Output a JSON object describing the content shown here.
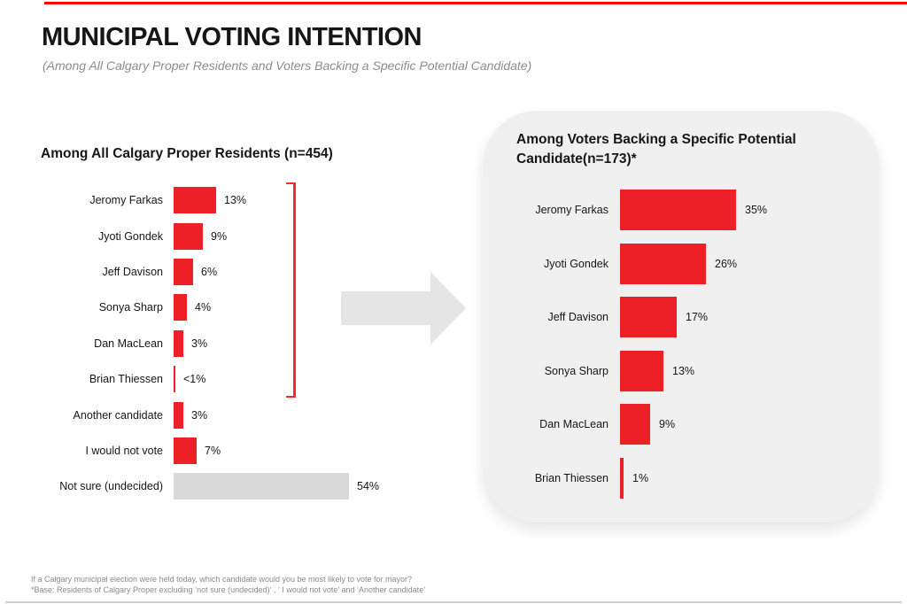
{
  "page": {
    "title": "MUNICIPAL VOTING INTENTION",
    "subtitle": "(Among All Calgary Proper Residents and Voters Backing a Specific Potential Candidate)",
    "footnote_line1": "If a Calgary municipal election were held today, which candidate would you be most likely to vote for mayor?",
    "footnote_line2": "*Base: Residents of Calgary Proper excluding ‘not sure (undecided)’ , ‘ I would not vote’ and ‘Another candidate’"
  },
  "colors": {
    "accent_line": "#FF0000",
    "bar_red": "#ED2027",
    "bar_gray": "#D9D9D9",
    "panel_bg": "#F0F0F0",
    "arrow_gray": "#E5E5E5"
  },
  "chart_data": [
    {
      "type": "bar",
      "orientation": "horizontal",
      "title": "Among All Calgary Proper Residents (n=454)",
      "categories": [
        "Jeromy Farkas",
        "Jyoti Gondek",
        "Jeff Davison",
        "Sonya Sharp",
        "Dan MacLean",
        "Brian Thiessen",
        "Another candidate",
        "I would not vote",
        "Not sure (undecided)"
      ],
      "values": [
        13,
        9,
        6,
        4,
        3,
        0.5,
        3,
        7,
        54
      ],
      "value_labels": [
        "13%",
        "9%",
        "6%",
        "4%",
        "3%",
        "<1%",
        "3%",
        "7%",
        "54%"
      ],
      "bar_variants": [
        "red",
        "red",
        "red",
        "red",
        "red",
        "red",
        "red",
        "red",
        "gray"
      ],
      "xlim": [
        0,
        60
      ],
      "grid": false,
      "annotation_bracket": {
        "from_row": 0,
        "to_row": 5,
        "color": "#F52A2A"
      }
    },
    {
      "type": "bar",
      "orientation": "horizontal",
      "title": "Among  Voters Backing a Specific Potential Candidate(n=173)*",
      "categories": [
        "Jeromy Farkas",
        "Jyoti Gondek",
        "Jeff Davison",
        "Sonya Sharp",
        "Dan MacLean",
        "Brian Thiessen"
      ],
      "values": [
        35,
        26,
        17,
        13,
        9,
        1
      ],
      "value_labels": [
        "35%",
        "26%",
        "17%",
        "13%",
        "9%",
        "1%"
      ],
      "bar_variants": [
        "red",
        "red",
        "red",
        "red",
        "red",
        "red"
      ],
      "xlim": [
        0,
        40
      ],
      "grid": false
    }
  ]
}
